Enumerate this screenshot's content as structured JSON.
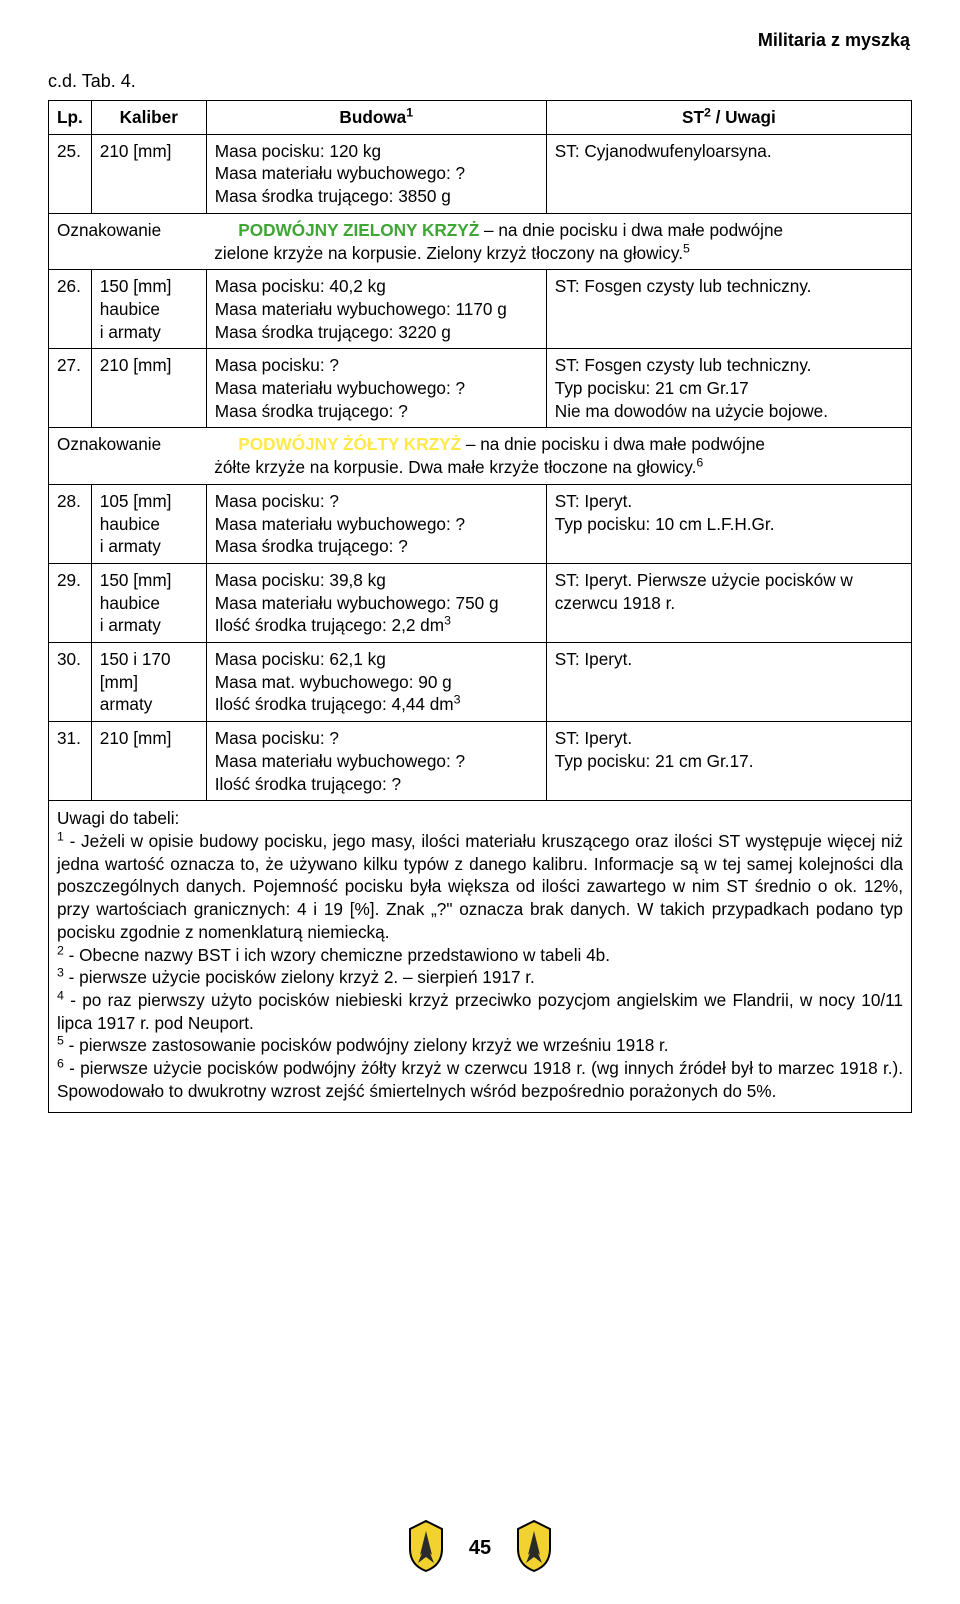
{
  "header": {
    "title": "Militaria z myszką"
  },
  "continuation": "c.d. Tab. 4.",
  "columns": {
    "lp": "Lp.",
    "kaliber": "Kaliber",
    "budowa": "Budowa",
    "budowa_sup": "1",
    "uwagi_pre": "ST",
    "uwagi_sup": "2",
    "uwagi_post": " / Uwagi"
  },
  "rows": [
    {
      "lp": "25.",
      "kaliber": "210 [mm]",
      "budowa": "Masa pocisku: 120 kg\nMasa materiału wybuchowego: ?\nMasa środka trującego: 3850 g",
      "uwagi": "ST: Cyjanodwufenyloarsyna."
    }
  ],
  "marking1": {
    "label": "Oznakowanie",
    "highlight": "PODWÓJNY ZIELONY KRZYŻ",
    "rest1": " – na dnie pocisku i dwa małe podwójne",
    "rest2": "zielone krzyże na korpusie. Zielony krzyż tłoczony na głowicy.",
    "sup": "5"
  },
  "rows2": [
    {
      "lp": "26.",
      "kaliber": "150 [mm]\nhaubice\ni armaty",
      "budowa": "Masa pocisku: 40,2 kg\nMasa materiału wybuchowego: 1170 g\nMasa środka trującego: 3220 g",
      "uwagi": "ST: Fosgen czysty lub techniczny."
    },
    {
      "lp": "27.",
      "kaliber": "210 [mm]",
      "budowa": "Masa pocisku: ?\nMasa materiału wybuchowego: ?\nMasa środka trującego: ?",
      "uwagi": "ST: Fosgen czysty lub techniczny.\nTyp pocisku: 21 cm Gr.17\nNie ma dowodów na użycie bojowe."
    }
  ],
  "marking2": {
    "label": "Oznakowanie",
    "highlight": "PODWÓJNY ŻÓŁTY KRZYŻ",
    "rest1": " – na dnie pocisku i dwa małe podwójne",
    "rest2": "żółte krzyże na korpusie. Dwa małe krzyże tłoczone na głowicy.",
    "sup": "6"
  },
  "rows3": [
    {
      "lp": "28.",
      "kaliber": "105 [mm]\nhaubice\ni armaty",
      "budowa": "Masa pocisku: ?\nMasa materiału wybuchowego: ?\nMasa środka trującego: ?",
      "uwagi": "ST: Iperyt.\nTyp pocisku: 10 cm L.F.H.Gr."
    },
    {
      "lp": "29.",
      "kaliber": "150 [mm]\nhaubice\ni armaty",
      "budowa": "Masa pocisku: 39,8 kg\nMasa materiału wybuchowego: 750 g\nIlość środka trującego: 2,2 dm",
      "budowa_sup": "3",
      "uwagi": "ST: Iperyt. Pierwsze użycie pocisków w czerwcu 1918 r."
    },
    {
      "lp": "30.",
      "kaliber": "150 i 170\n[mm]\narmaty",
      "budowa": "Masa pocisku: 62,1 kg\nMasa mat. wybuchowego: 90 g\nIlość środka trującego: 4,44 dm",
      "budowa_sup": "3",
      "uwagi": "ST: Iperyt."
    },
    {
      "lp": "31.",
      "kaliber": "210 [mm]",
      "budowa": "Masa pocisku: ?\nMasa materiału wybuchowego: ?\nIlość środka trującego: ?",
      "uwagi": "ST: Iperyt.\nTyp pocisku: 21 cm Gr.17."
    }
  ],
  "notes": {
    "heading": "Uwagi do tabeli:",
    "n1_sup": "1",
    "n1": " - Jeżeli w opisie budowy pocisku, jego masy, ilości materiału kruszącego oraz ilości ST występuje więcej niż jedna wartość oznacza to, że używano kilku typów z danego kalibru. Informacje są w tej samej kolejności dla poszczególnych danych. Pojemność pocisku była większa od ilości zawartego w nim ST średnio o ok. 12%, przy wartościach granicznych: 4 i 19 [%]. Znak „?\" oznacza brak danych. W takich przypadkach podano typ pocisku zgodnie z nomenklaturą niemiecką.",
    "n2_sup": "2",
    "n2": " - Obecne nazwy BST i ich wzory chemiczne przedstawiono w tabeli 4b.",
    "n3_sup": "3",
    "n3": " - pierwsze użycie pocisków zielony krzyż 2. – sierpień 1917 r.",
    "n4_sup": "4",
    "n4": " - po raz pierwszy użyto pocisków niebieski krzyż przeciwko pozycjom angielskim we Flandrii, w nocy 10/11 lipca 1917 r. pod Neuport.",
    "n5_sup": "5",
    "n5": " - pierwsze zastosowanie pocisków podwójny zielony krzyż we wrześniu 1918 r.",
    "n6_sup": "6",
    "n6": " - pierwsze użycie pocisków podwójny żółty krzyż w czerwcu 1918 r. (wg innych źródeł był to marzec 1918 r.). Spowodowało to dwukrotny wzrost zejść śmiertelnych wśród bezpośrednio porażonych do 5%."
  },
  "page": "45",
  "colors": {
    "text": "#000000",
    "green": "#3fa535",
    "yellow": "#ffe94a",
    "badge_fill": "#f2d22e",
    "badge_stroke": "#000000",
    "badge_inner": "#2a2a2a"
  }
}
